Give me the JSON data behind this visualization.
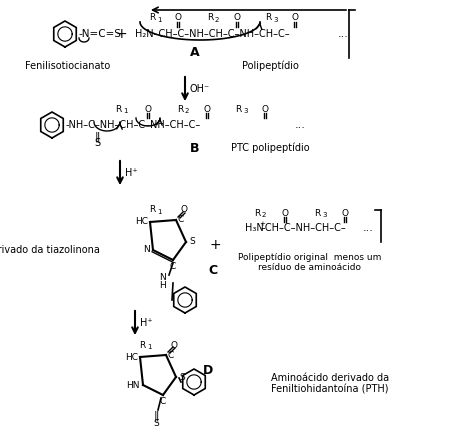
{
  "bg_color": "#ffffff",
  "text_color": "#000000",
  "figsize": [
    4.52,
    4.33
  ],
  "dpi": 100,
  "label_A": "A",
  "label_B": "B",
  "label_C": "C",
  "label_D": "D",
  "label_feniliso": "Fenilisotiocianato",
  "label_polipep": "Polipeptídio",
  "label_ptc": "PTC polipeptídio",
  "label_deriv_tia": "Derivado da tiazolinona",
  "label_polipep_orig1": "Polipeptídio original  menos um",
  "label_polipep_orig2": "resíduo de aminoácido",
  "label_amino1": "Aminoácido derivado da",
  "label_amino2": "Feniltiohidantoína (PTH)",
  "arrow_oh": "OH⁻",
  "arrow_h": "H⁺"
}
